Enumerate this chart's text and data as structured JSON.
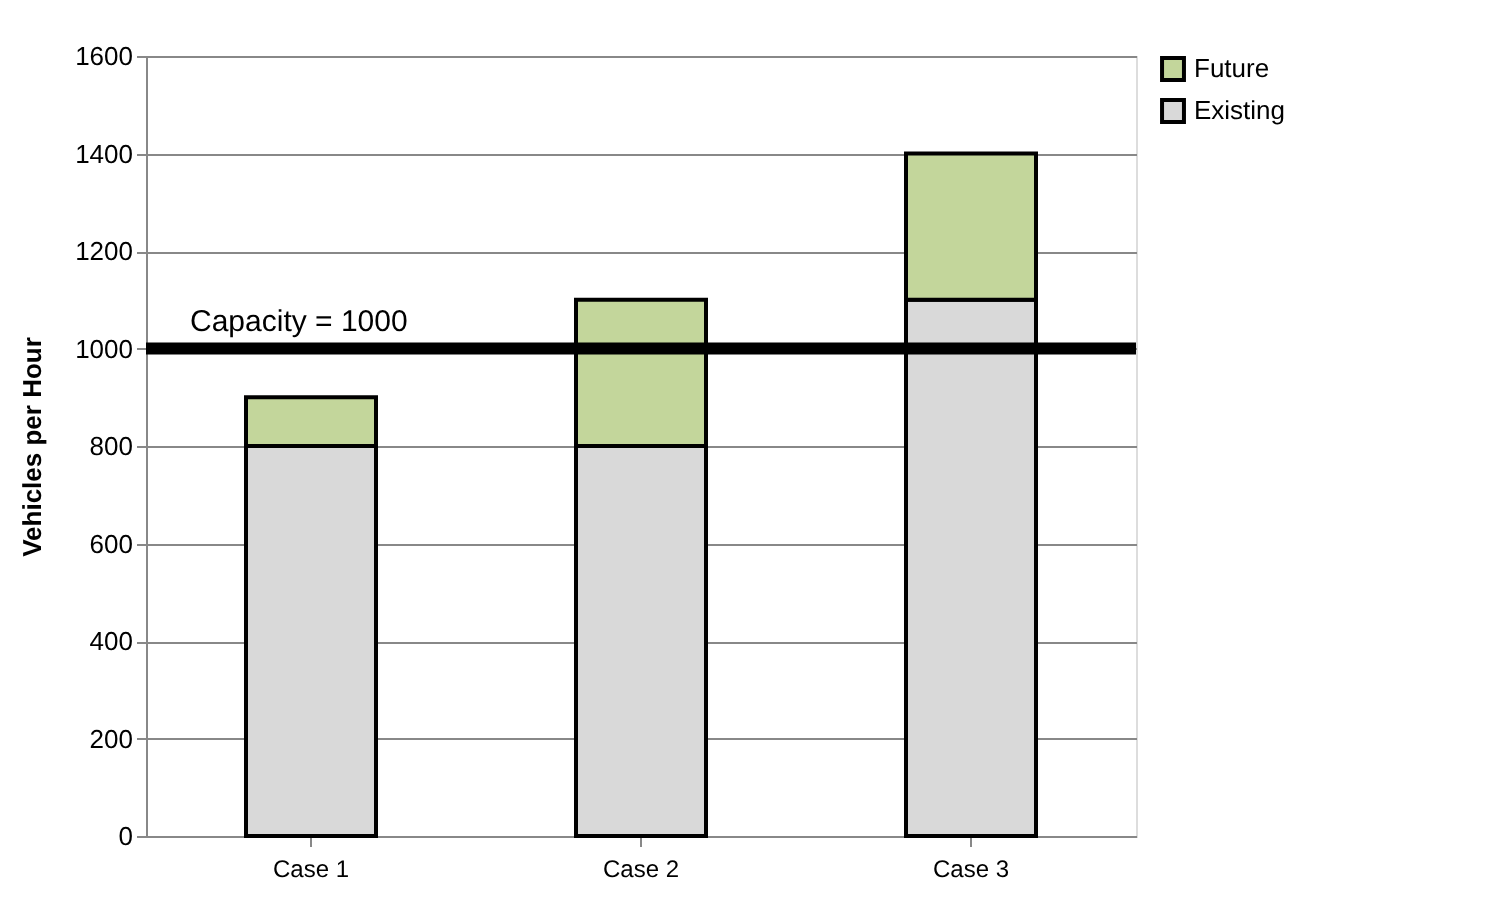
{
  "chart_data": {
    "type": "bar",
    "stacked": true,
    "categories": [
      "Case 1",
      "Case 2",
      "Case 3"
    ],
    "series": [
      {
        "name": "Existing",
        "color": "#d9d9d9",
        "values": [
          800,
          800,
          1100
        ]
      },
      {
        "name": "Future",
        "color": "#c3d69b",
        "values": [
          100,
          300,
          300
        ]
      }
    ],
    "ylabel": "Vehicles per Hour",
    "ylim": [
      0,
      1600
    ],
    "yticks": [
      0,
      200,
      400,
      600,
      800,
      1000,
      1200,
      1400,
      1600
    ],
    "grid": "y",
    "legend": "right",
    "ref_lines": [
      {
        "axis": "y",
        "value": 1000,
        "label": "Capacity = 1000",
        "color": "#000000"
      }
    ]
  }
}
